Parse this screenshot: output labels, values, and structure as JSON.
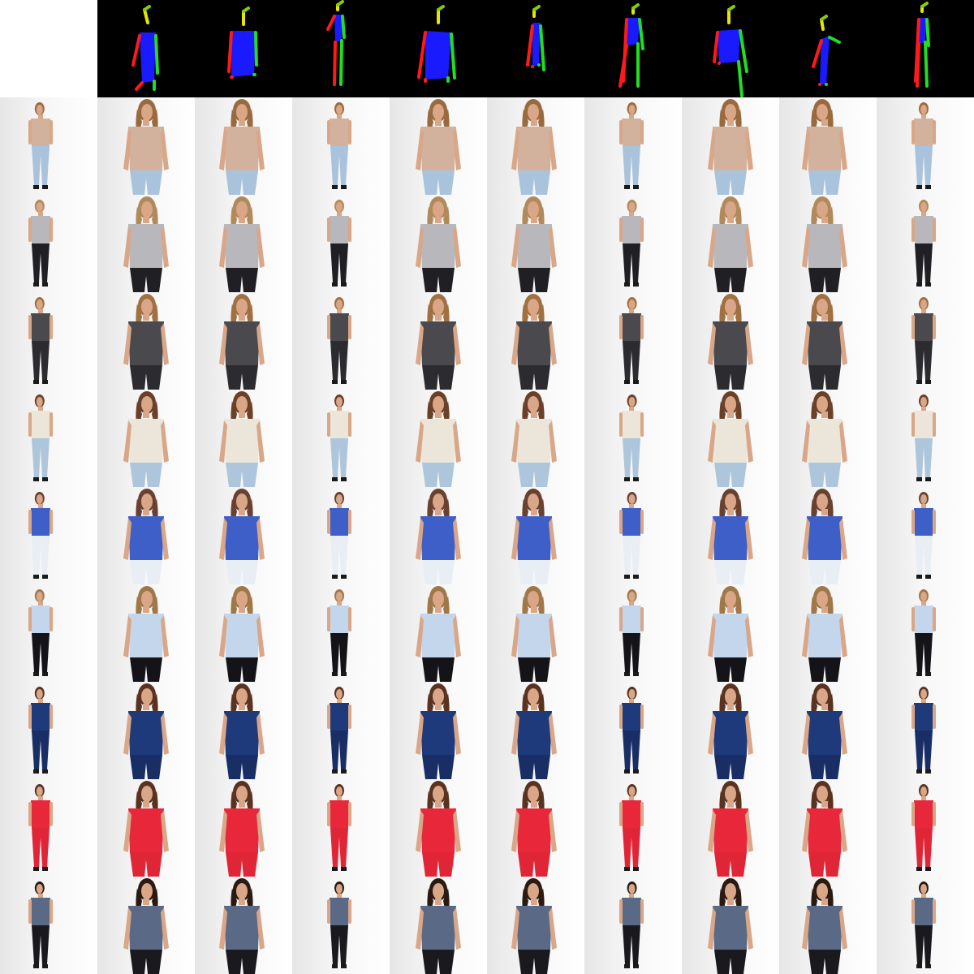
{
  "colors": {
    "background": "#ffffff",
    "pose_background": "#000000",
    "limb_left": "#ff1a1a",
    "limb_right": "#22dd22",
    "torso": "#1a1aff",
    "head_yellow": "#e6e600",
    "head_green": "#88cc00",
    "skin": "#d9a688",
    "hair": "#7a4a2a",
    "backdrop": "#f2f2f2"
  },
  "pose_views": [
    "side-left",
    "side-right",
    "front",
    "full-front",
    "front-wide",
    "three-quarter",
    "full-walk",
    "full-front-wide",
    "lean",
    "full-side"
  ],
  "outfits": [
    {
      "name": "beige-tank-light-jeans",
      "top": "#d2b29c",
      "bottom": "#a9c3dc",
      "hair": "#9a6a3f"
    },
    {
      "name": "gray-knit-black-pants",
      "top": "#b8b8bc",
      "bottom": "#202024",
      "hair": "#b08a5a"
    },
    {
      "name": "patterned-romper",
      "top": "#4a4a4e",
      "bottom": "#2c2c30",
      "hair": "#a07040"
    },
    {
      "name": "cream-sweater-ripped-jeans",
      "top": "#ece6da",
      "bottom": "#aec6dc",
      "hair": "#6a4028"
    },
    {
      "name": "blue-tank-white-shorts",
      "top": "#3f5fc8",
      "bottom": "#e8eef4",
      "hair": "#6a4030"
    },
    {
      "name": "light-blue-cami-black-leggings",
      "top": "#c4d6ec",
      "bottom": "#141418",
      "hair": "#a07848"
    },
    {
      "name": "navy-lace-dress",
      "top": "#1e3a7a",
      "bottom": "#1a2e66",
      "hair": "#5a3220"
    },
    {
      "name": "red-dress",
      "top": "#e8283a",
      "bottom": "#e02636",
      "hair": "#5a3220"
    },
    {
      "name": "plaid-tee-black-jeans",
      "top": "#5a6a86",
      "bottom": "#1a1a1e",
      "hair": "#2a1a12"
    }
  ]
}
